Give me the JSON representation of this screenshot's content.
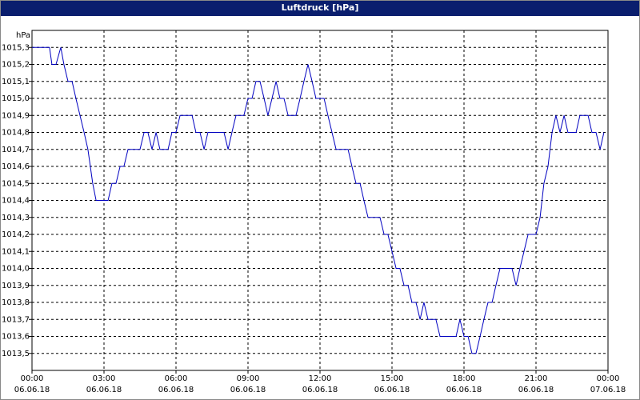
{
  "chart_data": {
    "type": "line",
    "title": "Luftdruck [hPa]",
    "y_label": "hPa",
    "x": [
      0,
      0.73,
      0.83,
      1,
      1.2,
      1.33,
      1.5,
      1.67,
      1.83,
      2,
      2.17,
      2.33,
      2.43,
      2.53,
      2.67,
      3.17,
      3.33,
      3.5,
      3.67,
      3.83,
      4,
      4.5,
      4.67,
      4.83,
      5,
      5.17,
      5.33,
      5.67,
      5.83,
      6,
      6.17,
      6.67,
      6.83,
      7,
      7.17,
      7.33,
      8,
      8.17,
      8.33,
      8.5,
      8.83,
      9,
      9.17,
      9.33,
      9.5,
      9.67,
      9.83,
      10,
      10.17,
      10.33,
      10.5,
      10.67,
      11,
      11.17,
      11.33,
      11.5,
      11.67,
      11.83,
      12.17,
      12.33,
      12.5,
      12.67,
      13.17,
      13.33,
      13.5,
      13.67,
      13.83,
      14,
      14.5,
      14.67,
      14.83,
      15,
      15.17,
      15.33,
      15.5,
      15.67,
      15.83,
      16,
      16.17,
      16.33,
      16.5,
      16.83,
      17,
      17.67,
      17.83,
      18,
      18.17,
      18.33,
      18.5,
      18.67,
      18.83,
      19,
      19.17,
      19.33,
      19.5,
      20,
      20.17,
      20.33,
      20.5,
      20.67,
      21,
      21.17,
      21.33,
      21.5,
      21.67,
      21.83,
      22,
      22.17,
      22.33,
      22.67,
      22.83,
      23.17,
      23.33,
      23.5,
      23.67,
      23.83
    ],
    "series": [
      {
        "name": "Luftdruck",
        "color": "#0000c0",
        "values": [
          1015.3,
          1015.3,
          1015.2,
          1015.2,
          1015.3,
          1015.2,
          1015.1,
          1015.1,
          1015.0,
          1014.9,
          1014.8,
          1014.7,
          1014.6,
          1014.5,
          1014.4,
          1014.4,
          1014.5,
          1014.5,
          1014.6,
          1014.6,
          1014.7,
          1014.7,
          1014.8,
          1014.8,
          1014.7,
          1014.8,
          1014.7,
          1014.7,
          1014.8,
          1014.8,
          1014.9,
          1014.9,
          1014.8,
          1014.8,
          1014.7,
          1014.8,
          1014.8,
          1014.7,
          1014.8,
          1014.9,
          1014.9,
          1015.0,
          1015.0,
          1015.1,
          1015.1,
          1015.0,
          1014.9,
          1015.0,
          1015.1,
          1015.0,
          1015.0,
          1014.9,
          1014.9,
          1015.0,
          1015.1,
          1015.2,
          1015.1,
          1015.0,
          1015.0,
          1014.9,
          1014.8,
          1014.7,
          1014.7,
          1014.6,
          1014.5,
          1014.5,
          1014.4,
          1014.3,
          1014.3,
          1014.2,
          1014.2,
          1014.1,
          1014.0,
          1014.0,
          1013.9,
          1013.9,
          1013.8,
          1013.8,
          1013.7,
          1013.8,
          1013.7,
          1013.7,
          1013.6,
          1013.6,
          1013.7,
          1013.6,
          1013.6,
          1013.5,
          1013.5,
          1013.6,
          1013.7,
          1013.8,
          1013.8,
          1013.9,
          1014.0,
          1014.0,
          1013.9,
          1014.0,
          1014.1,
          1014.2,
          1014.2,
          1014.3,
          1014.5,
          1014.6,
          1014.8,
          1014.9,
          1014.8,
          1014.9,
          1014.8,
          1014.8,
          1014.9,
          1014.9,
          1014.8,
          1014.8,
          1014.7,
          1014.8
        ]
      }
    ],
    "xlim": [
      0,
      24
    ],
    "xticks": [
      {
        "value": 0,
        "label": "00:00\n06.06.18"
      },
      {
        "value": 3,
        "label": "03:00\n06.06.18"
      },
      {
        "value": 6,
        "label": "06:00\n06.06.18"
      },
      {
        "value": 9,
        "label": "09:00\n06.06.18"
      },
      {
        "value": 12,
        "label": "12:00\n06.06.18"
      },
      {
        "value": 15,
        "label": "15:00\n06.06.18"
      },
      {
        "value": 18,
        "label": "18:00\n06.06.18"
      },
      {
        "value": 21,
        "label": "21:00\n06.06.18"
      },
      {
        "value": 24,
        "label": "00:00\n07.06.18"
      }
    ],
    "ylim": [
      1013.4,
      1015.4
    ],
    "yticks": [
      {
        "value": 1013.5,
        "label": "1013,5"
      },
      {
        "value": 1013.6,
        "label": "1013,6"
      },
      {
        "value": 1013.7,
        "label": "1013,7"
      },
      {
        "value": 1013.8,
        "label": "1013,8"
      },
      {
        "value": 1013.9,
        "label": "1013,9"
      },
      {
        "value": 1014.0,
        "label": "1014,0"
      },
      {
        "value": 1014.1,
        "label": "1014,1"
      },
      {
        "value": 1014.2,
        "label": "1014,2"
      },
      {
        "value": 1014.3,
        "label": "1014,3"
      },
      {
        "value": 1014.4,
        "label": "1014,4"
      },
      {
        "value": 1014.5,
        "label": "1014,5"
      },
      {
        "value": 1014.6,
        "label": "1014,6"
      },
      {
        "value": 1014.7,
        "label": "1014,7"
      },
      {
        "value": 1014.8,
        "label": "1014,8"
      },
      {
        "value": 1014.9,
        "label": "1014,9"
      },
      {
        "value": 1015.0,
        "label": "1015,0"
      },
      {
        "value": 1015.1,
        "label": "1015,1"
      },
      {
        "value": 1015.2,
        "label": "1015,2"
      },
      {
        "value": 1015.3,
        "label": "1015,3"
      }
    ],
    "grid": true
  }
}
